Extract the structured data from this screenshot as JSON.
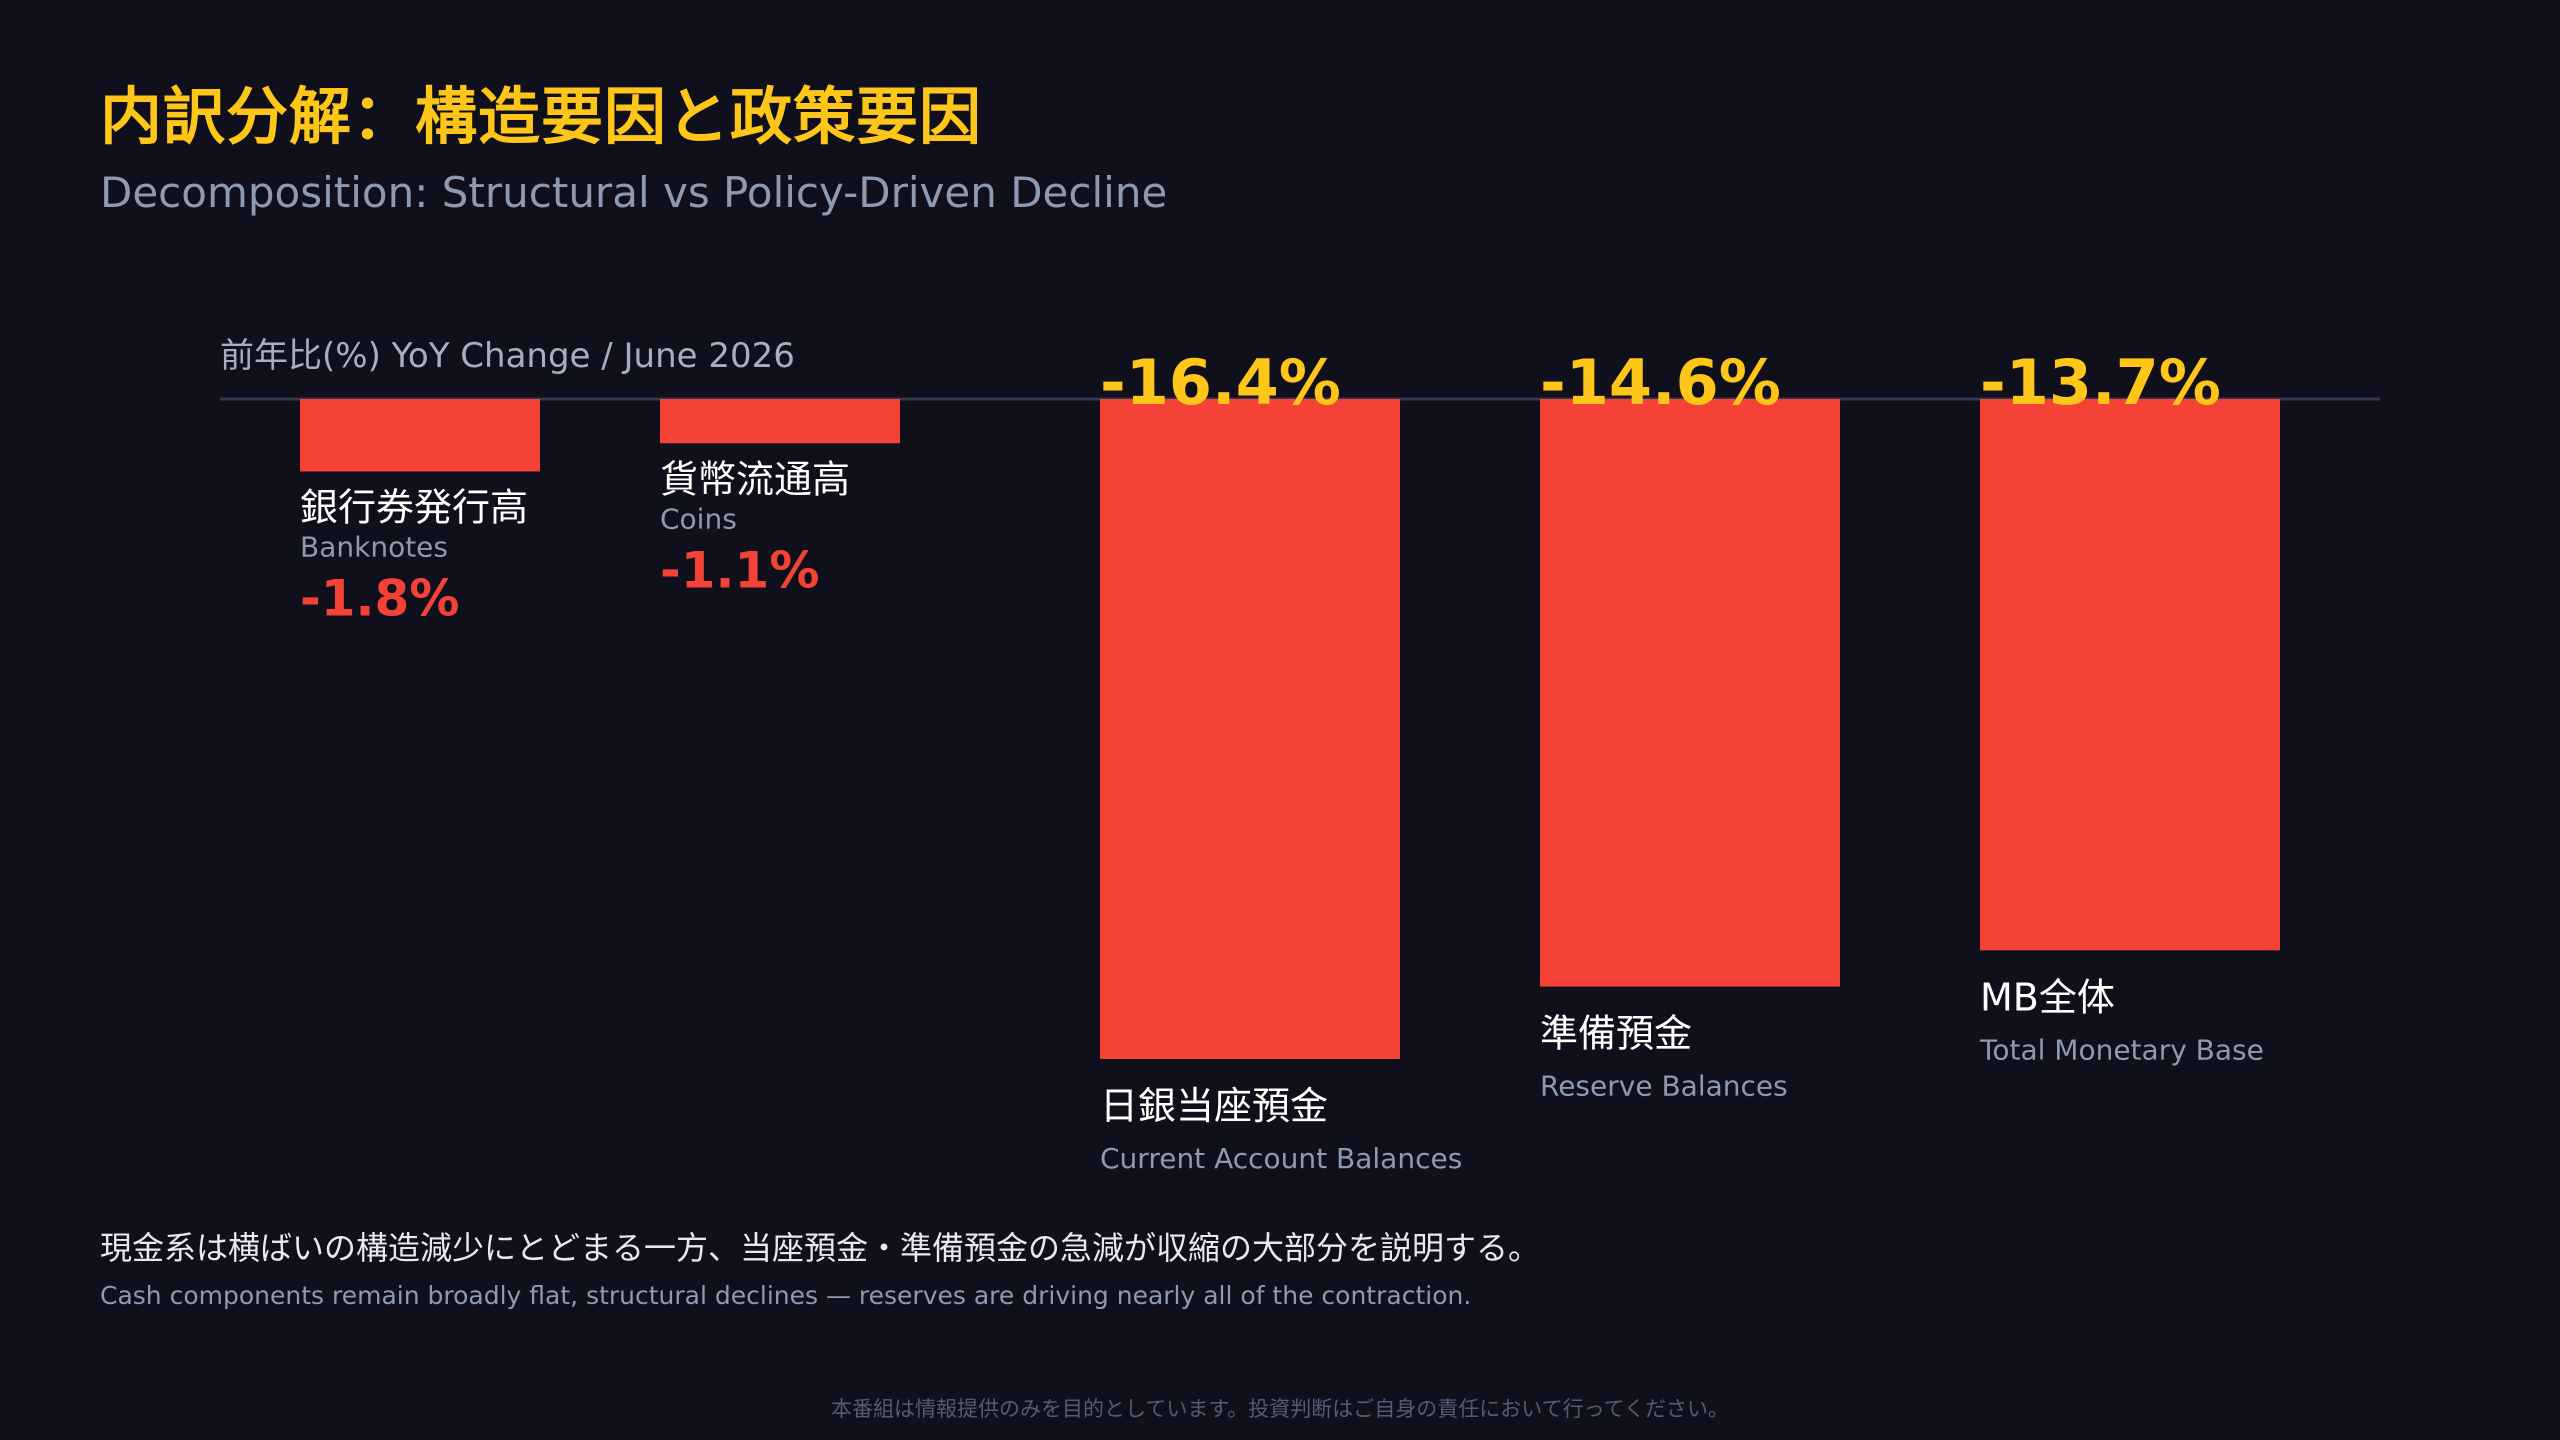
{
  "header": {
    "title": "内訳分解：構造要因と政策要因",
    "subtitle": "Decomposition: Structural vs Policy-Driven Decline"
  },
  "chart_data": {
    "type": "bar",
    "ylabel": "前年比(%) YoY Change / June 2026",
    "ylim": [
      -16.4,
      0
    ],
    "categories": [
      "銀行券発行高",
      "貨幣流通高",
      "日銀当座預金",
      "準備預金",
      "MB全体"
    ],
    "categories_en": [
      "Banknotes",
      "Coins",
      "Current Account Balances",
      "Reserve Balances",
      "Total Monetary Base"
    ],
    "values": [
      -1.8,
      -1.1,
      -16.4,
      -14.6,
      -13.7
    ],
    "value_labels": [
      "-1.8%",
      "-1.1%",
      "-16.4%",
      "-14.6%",
      "-13.7%"
    ],
    "colors": {
      "bar": "#f44336",
      "highlight_value": "#ffc61a"
    }
  },
  "footer": {
    "note_jp": "現金系は横ばいの構造減少にとどまる一方、当座預金・準備預金の急減が収縮の大部分を説明する。",
    "note_en": "Cash components remain broadly flat, structural declines — reserves are driving nearly all of the contraction.",
    "disclaimer": "本番組は情報提供のみを目的としています。投資判断はご自身の責任において行ってください。"
  }
}
